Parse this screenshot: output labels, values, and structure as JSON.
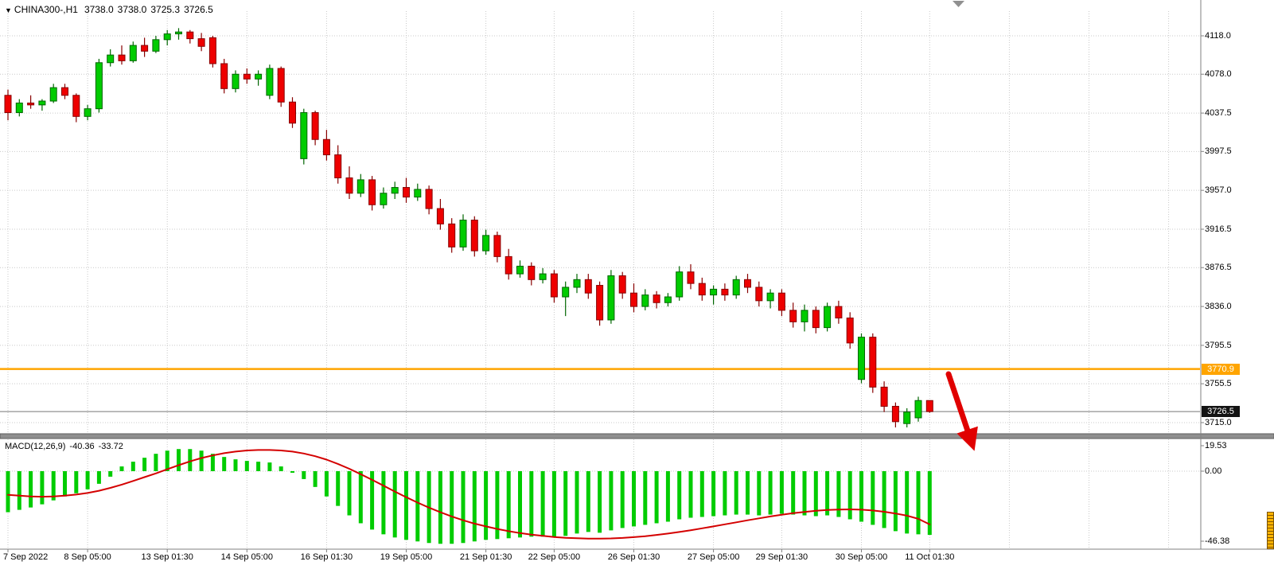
{
  "header": {
    "collapse_icon": "▼",
    "symbol": "CHINA300-,H1",
    "open": "3738.0",
    "high": "3738.0",
    "low": "3725.3",
    "close": "3726.5"
  },
  "price_axis": {
    "ticks": [
      "4118.0",
      "4078.0",
      "4037.5",
      "3997.5",
      "3957.0",
      "3916.5",
      "3876.5",
      "3836.0",
      "3795.5",
      "3755.5",
      "3715.0"
    ],
    "hline_badge": "3770.9",
    "current_badge": "3726.5"
  },
  "time_axis": {
    "labels": [
      "7 Sep 2022",
      "8 Sep 05:00",
      "13 Sep 01:30",
      "14 Sep 05:00",
      "16 Sep 01:30",
      "19 Sep 05:00",
      "21 Sep 01:30",
      "22 Sep 05:00",
      "26 Sep 01:30",
      "27 Sep 05:00",
      "29 Sep 01:30",
      "30 Sep 05:00",
      "11 Oct 01:30"
    ],
    "indices": [
      0,
      7,
      14,
      21,
      28,
      35,
      42,
      48,
      55,
      62,
      68,
      75,
      81
    ]
  },
  "macd_panel": {
    "name": "MACD(12,26,9)",
    "macd_value": "-40.36",
    "signal_value": "-33.72",
    "ticks": [
      "19.53",
      "0.00",
      "-46.38"
    ],
    "tick_values": [
      19.53,
      0,
      -46.38
    ]
  },
  "colors": {
    "bull": "#00cc00",
    "bull_border": "#006600",
    "bear": "#ee0000",
    "bear_border": "#880000",
    "hline": "#ffa500",
    "signal": "#d40000",
    "grid": "#c9c9c9",
    "arrow": "#e00000",
    "separator": "#8f8f8f",
    "axis_line": "#808080",
    "current_line": "#777777"
  },
  "chart_data": [
    {
      "type": "candlestick",
      "symbol": "CHINA300-,H1",
      "timeframe": "H1",
      "title": "CHINA300- hourly price",
      "ylim": [
        3715,
        4118
      ],
      "y_ticks": [
        4118,
        4078,
        4037.5,
        3997.5,
        3957,
        3916.5,
        3876.5,
        3836,
        3795.5,
        3755.5,
        3715
      ],
      "hline": 3770.9,
      "current_price": 3726.5,
      "future_grid_indices": [
        88,
        95,
        102
      ],
      "ohlc": [
        [
          4056,
          4062,
          4030,
          4038
        ],
        [
          4038,
          4052,
          4034,
          4048
        ],
        [
          4048,
          4056,
          4042,
          4046
        ],
        [
          4046,
          4052,
          4040,
          4050
        ],
        [
          4050,
          4068,
          4048,
          4064
        ],
        [
          4064,
          4068,
          4052,
          4056
        ],
        [
          4056,
          4058,
          4028,
          4034
        ],
        [
          4034,
          4046,
          4030,
          4042
        ],
        [
          4042,
          4094,
          4038,
          4090
        ],
        [
          4090,
          4104,
          4086,
          4098
        ],
        [
          4098,
          4108,
          4088,
          4092
        ],
        [
          4092,
          4112,
          4090,
          4108
        ],
        [
          4108,
          4116,
          4096,
          4102
        ],
        [
          4102,
          4118,
          4100,
          4114
        ],
        [
          4114,
          4124,
          4108,
          4120
        ],
        [
          4120,
          4126,
          4114,
          4122
        ],
        [
          4122,
          4124,
          4110,
          4115
        ],
        [
          4115,
          4121,
          4102,
          4107
        ],
        [
          4116,
          4118,
          4085,
          4089
        ],
        [
          4089,
          4094,
          4058,
          4063
        ],
        [
          4063,
          4082,
          4059,
          4078
        ],
        [
          4078,
          4084,
          4068,
          4073
        ],
        [
          4073,
          4082,
          4066,
          4078
        ],
        [
          4056,
          4088,
          4052,
          4084
        ],
        [
          4084,
          4086,
          4044,
          4049
        ],
        [
          4049,
          4054,
          4022,
          4027
        ],
        [
          3990,
          4042,
          3984,
          4038
        ],
        [
          4038,
          4040,
          4004,
          4010
        ],
        [
          4010,
          4020,
          3988,
          3994
        ],
        [
          3994,
          4004,
          3964,
          3970
        ],
        [
          3970,
          3982,
          3948,
          3954
        ],
        [
          3954,
          3974,
          3950,
          3968
        ],
        [
          3968,
          3972,
          3936,
          3942
        ],
        [
          3942,
          3960,
          3938,
          3954
        ],
        [
          3954,
          3966,
          3948,
          3960
        ],
        [
          3960,
          3970,
          3944,
          3950
        ],
        [
          3950,
          3964,
          3946,
          3958
        ],
        [
          3958,
          3962,
          3932,
          3938
        ],
        [
          3938,
          3948,
          3916,
          3922
        ],
        [
          3922,
          3928,
          3892,
          3898
        ],
        [
          3898,
          3932,
          3894,
          3926
        ],
        [
          3926,
          3930,
          3888,
          3894
        ],
        [
          3894,
          3916,
          3890,
          3910
        ],
        [
          3910,
          3914,
          3882,
          3888
        ],
        [
          3888,
          3896,
          3864,
          3870
        ],
        [
          3870,
          3884,
          3866,
          3878
        ],
        [
          3878,
          3882,
          3858,
          3864
        ],
        [
          3864,
          3876,
          3860,
          3870
        ],
        [
          3870,
          3874,
          3840,
          3846
        ],
        [
          3846,
          3862,
          3826,
          3856
        ],
        [
          3856,
          3870,
          3850,
          3864
        ],
        [
          3864,
          3870,
          3844,
          3850
        ],
        [
          3858,
          3862,
          3816,
          3822
        ],
        [
          3822,
          3874,
          3818,
          3868
        ],
        [
          3868,
          3872,
          3844,
          3850
        ],
        [
          3850,
          3860,
          3830,
          3836
        ],
        [
          3836,
          3854,
          3832,
          3848
        ],
        [
          3848,
          3852,
          3834,
          3840
        ],
        [
          3840,
          3850,
          3836,
          3846
        ],
        [
          3846,
          3878,
          3842,
          3872
        ],
        [
          3872,
          3880,
          3854,
          3860
        ],
        [
          3860,
          3866,
          3842,
          3848
        ],
        [
          3848,
          3858,
          3838,
          3854
        ],
        [
          3854,
          3860,
          3842,
          3848
        ],
        [
          3848,
          3868,
          3844,
          3864
        ],
        [
          3864,
          3870,
          3850,
          3856
        ],
        [
          3856,
          3862,
          3836,
          3842
        ],
        [
          3842,
          3854,
          3834,
          3850
        ],
        [
          3850,
          3854,
          3826,
          3832
        ],
        [
          3832,
          3840,
          3814,
          3820
        ],
        [
          3820,
          3838,
          3810,
          3832
        ],
        [
          3832,
          3836,
          3808,
          3814
        ],
        [
          3814,
          3840,
          3810,
          3836
        ],
        [
          3836,
          3842,
          3818,
          3824
        ],
        [
          3824,
          3830,
          3792,
          3798
        ],
        [
          3760,
          3808,
          3756,
          3804
        ],
        [
          3804,
          3808,
          3746,
          3752
        ],
        [
          3752,
          3758,
          3726,
          3732
        ],
        [
          3732,
          3736,
          3710,
          3716
        ],
        [
          3714,
          3730,
          3710,
          3726
        ],
        [
          3720,
          3742,
          3716,
          3738
        ],
        [
          3738.0,
          3738.0,
          3725.3,
          3726.5
        ]
      ]
    },
    {
      "type": "macd",
      "title": "MACD(12,26,9)",
      "params": [
        12,
        26,
        9
      ],
      "ylim": [
        -46.38,
        19.53
      ],
      "last_macd": -40.36,
      "last_signal": -33.72,
      "histogram": [
        -26,
        -24.5,
        -23,
        -21,
        -18.5,
        -16,
        -14,
        -11.5,
        -8,
        -3.5,
        3,
        6,
        8.5,
        11,
        13,
        14,
        14,
        13,
        11,
        9,
        7.5,
        6.5,
        6,
        5.5,
        3,
        -1,
        -5,
        -10,
        -16,
        -22,
        -28,
        -33,
        -37,
        -40,
        -42,
        -43.5,
        -44.5,
        -45.5,
        -46,
        -46,
        -45.5,
        -44.5,
        -43.5,
        -43,
        -42.5,
        -42,
        -41.5,
        -41.5,
        -42,
        -41,
        -39.5,
        -38.5,
        -39,
        -37.5,
        -36,
        -35,
        -34,
        -33,
        -32,
        -30.5,
        -29.5,
        -29,
        -28.5,
        -28,
        -27.5,
        -27.5,
        -28,
        -27.5,
        -27,
        -27.5,
        -28,
        -28.5,
        -28,
        -29,
        -30.5,
        -32,
        -34,
        -36,
        -38,
        -39.5,
        -40,
        -40.36
      ],
      "signal": [
        -15,
        -15.5,
        -16,
        -16.2,
        -16,
        -15.5,
        -14.8,
        -13.8,
        -12.4,
        -10.6,
        -8.5,
        -6.2,
        -3.8,
        -1.4,
        1.2,
        3.8,
        6.2,
        8.3,
        10,
        11.4,
        12.4,
        13.1,
        13.4,
        13.4,
        13.1,
        12.4,
        11.2,
        9.5,
        7.3,
        4.6,
        1.5,
        -1.9,
        -5.5,
        -9.2,
        -12.9,
        -16.5,
        -19.9,
        -23.1,
        -26,
        -28.7,
        -31.1,
        -33.2,
        -35,
        -36.6,
        -38,
        -39.2,
        -40.2,
        -41,
        -41.7,
        -42.2,
        -42.5,
        -42.7,
        -42.7,
        -42.6,
        -42.3,
        -41.8,
        -41.2,
        -40.4,
        -39.5,
        -38.5,
        -37.4,
        -36.2,
        -35,
        -33.7,
        -32.4,
        -31.1,
        -29.9,
        -28.7,
        -27.6,
        -26.6,
        -25.8,
        -25.1,
        -24.6,
        -24.3,
        -24.2,
        -24.4,
        -24.9,
        -25.7,
        -26.8,
        -28.2,
        -30.2,
        -33.72
      ]
    }
  ],
  "annotations": {
    "arrow": {
      "type": "down-right-arrow",
      "color": "#e00000"
    }
  }
}
